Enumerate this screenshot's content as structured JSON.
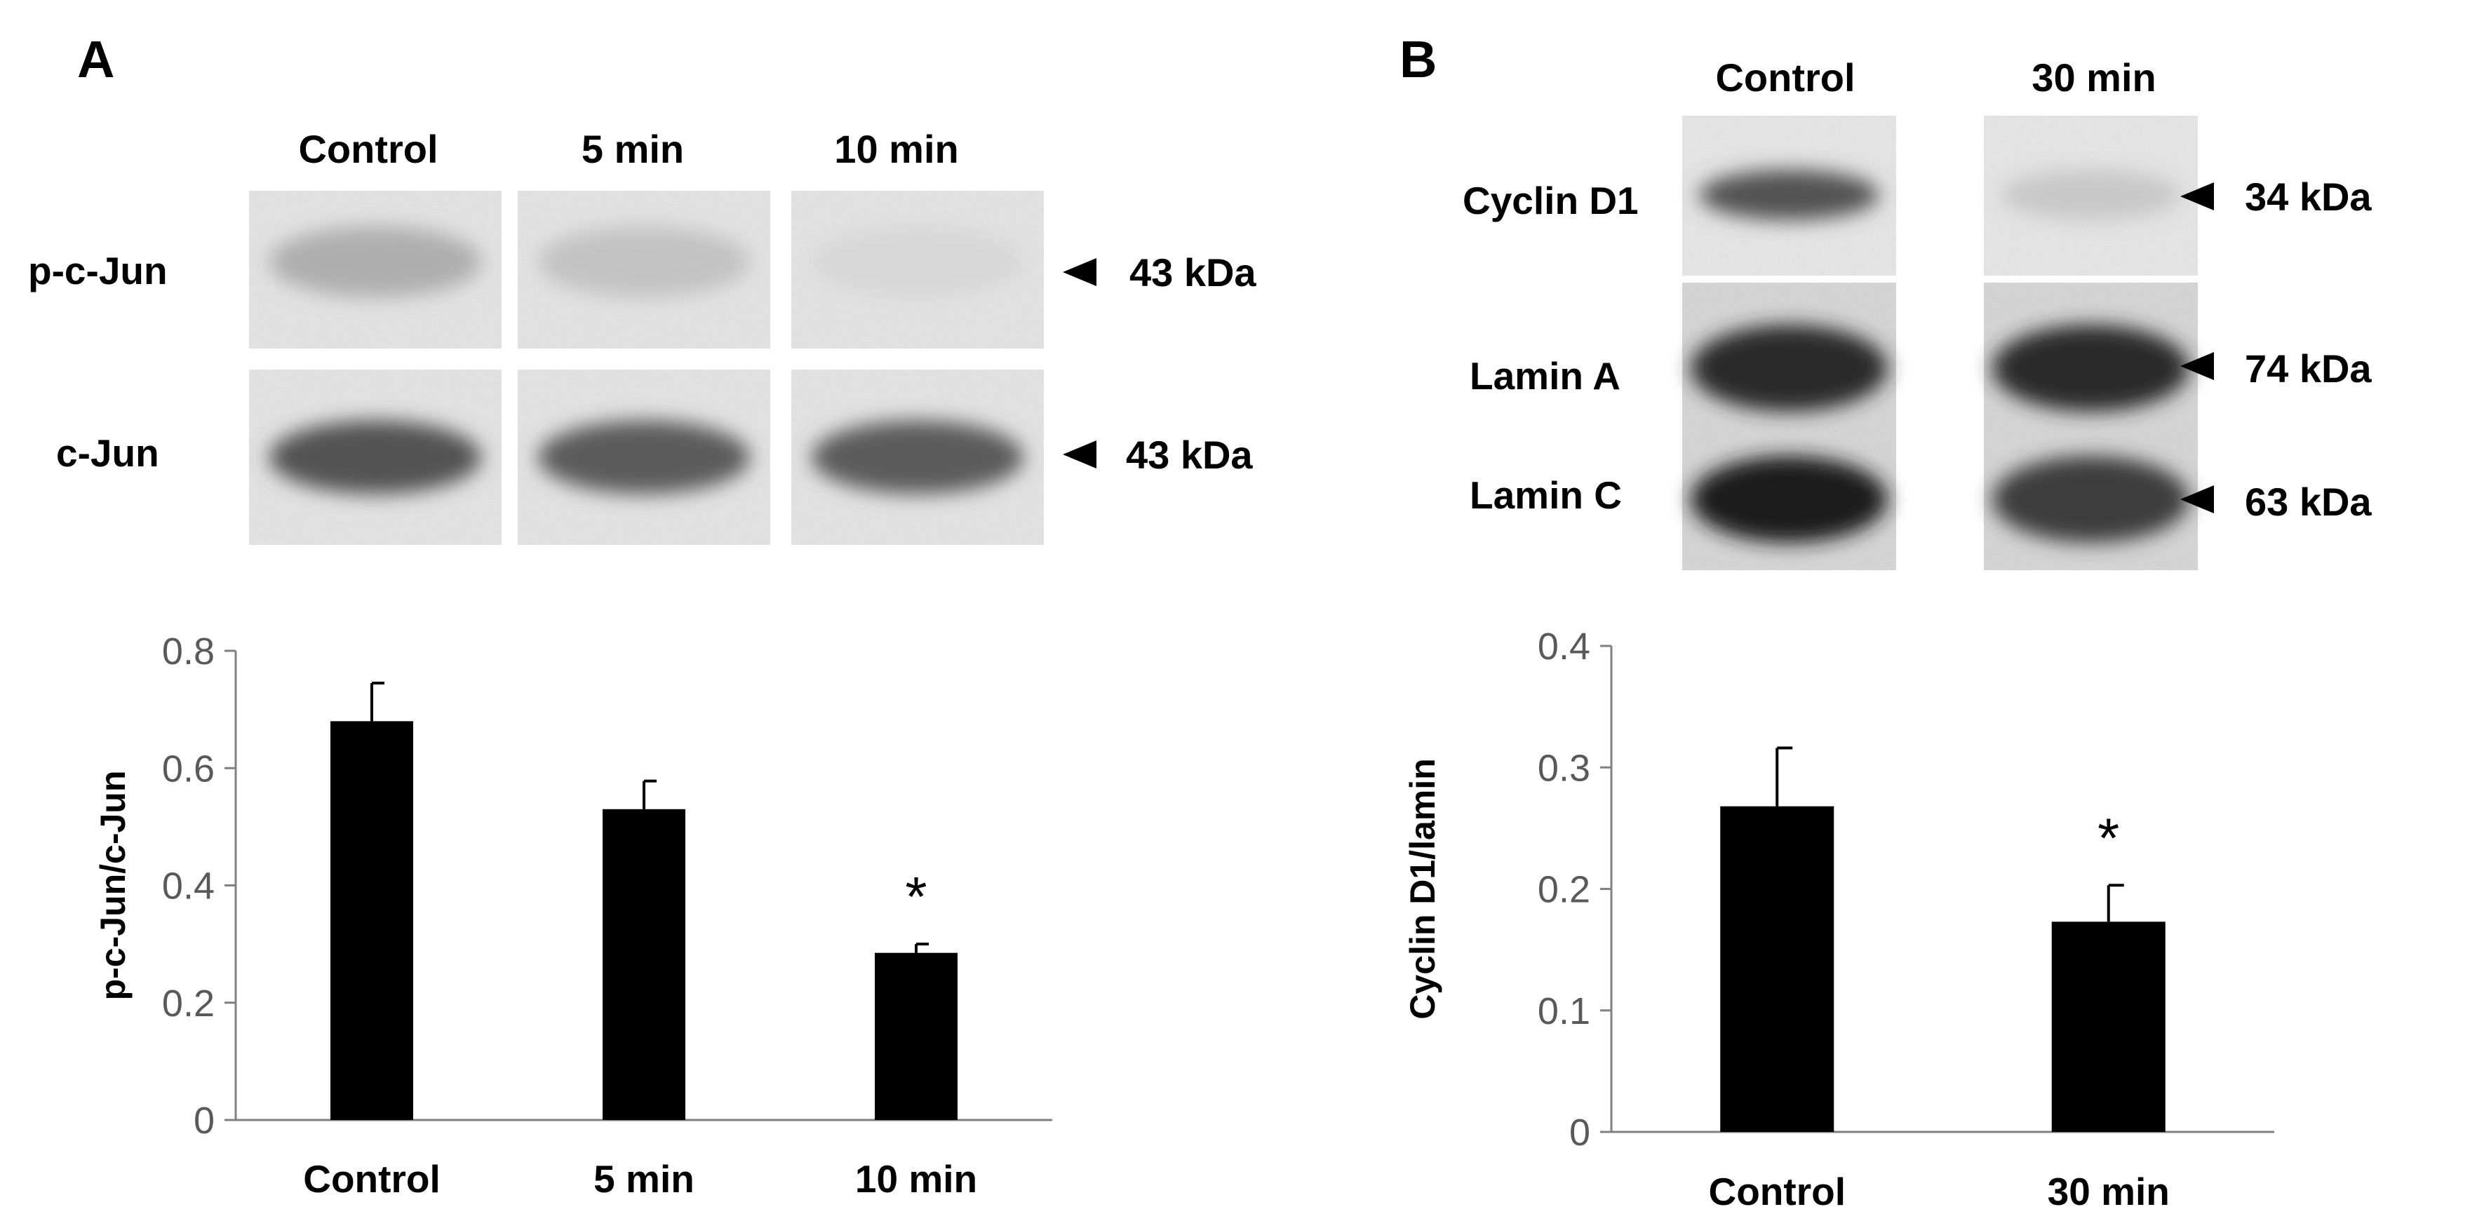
{
  "figure": {
    "panel_a_letter": "A",
    "panel_b_letter": "B"
  },
  "blot_a": {
    "lanes": [
      "Control",
      "5 min",
      "10 min"
    ],
    "rows": [
      {
        "label": "p-c-Jun",
        "mw": "43 kDa",
        "intensity": [
          0.25,
          0.15,
          0.05
        ]
      },
      {
        "label": "c-Jun",
        "mw": "43 kDa",
        "intensity": [
          0.7,
          0.65,
          0.65
        ]
      }
    ]
  },
  "blot_b": {
    "lanes": [
      "Control",
      "30 min"
    ],
    "rows": [
      {
        "label": "Cyclin D1",
        "mw": "34 kDa",
        "intensity": [
          0.7,
          0.12
        ]
      },
      {
        "label": "Lamin A",
        "mw": "74 kDa",
        "intensity": [
          0.9,
          0.9
        ]
      },
      {
        "label": "Lamin C",
        "mw": "63 kDa",
        "intensity": [
          0.95,
          0.8
        ]
      }
    ]
  },
  "chart_data": [
    {
      "type": "bar",
      "panel": "A",
      "categories": [
        "Control",
        "5 min",
        "10 min"
      ],
      "values": [
        0.68,
        0.53,
        0.285
      ],
      "errors": [
        0.065,
        0.048,
        0.015
      ],
      "significance": [
        "",
        "",
        "*"
      ],
      "ylabel": "p-c-Jun/c-Jun",
      "ylim": [
        0,
        0.8
      ],
      "yticks": [
        0,
        0.2,
        0.4,
        0.6,
        0.8
      ],
      "ytick_labels": [
        "0",
        "0.2",
        "0.4",
        "0.6",
        "0.8"
      ],
      "bar_color": "#000000",
      "grid": false
    },
    {
      "type": "bar",
      "panel": "B",
      "categories": [
        "Control",
        "30 min"
      ],
      "values": [
        0.268,
        0.173
      ],
      "errors": [
        0.048,
        0.03
      ],
      "significance": [
        "",
        "*"
      ],
      "ylabel": "Cyclin D1/lamin",
      "ylim": [
        0,
        0.4
      ],
      "yticks": [
        0,
        0.1,
        0.2,
        0.3,
        0.4
      ],
      "ytick_labels": [
        "0",
        "0.1",
        "0.2",
        "0.3",
        "0.4"
      ],
      "bar_color": "#000000",
      "grid": false
    }
  ]
}
